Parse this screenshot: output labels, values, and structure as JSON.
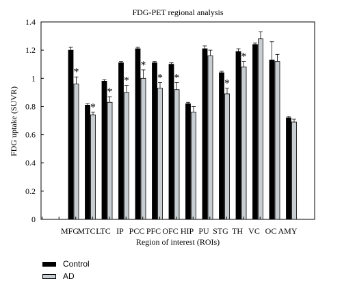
{
  "chart_data": {
    "type": "bar",
    "title": "FDG-PET regional analysis",
    "xlabel": "Region of interest (ROIs)",
    "ylabel": "FDG uptake (SUVR)",
    "ylim": [
      0,
      1.4
    ],
    "yticks": [
      "0",
      "0.2",
      "0.4",
      "0.6",
      "0.8",
      "1",
      "1.2",
      "1.4"
    ],
    "categories": [
      "MFG",
      "MTC",
      "LTC",
      "IP",
      "PCC",
      "PFC",
      "OFC",
      "HIP",
      "PU",
      "STG",
      "TH",
      "VC",
      "OC",
      "AMY"
    ],
    "series": [
      {
        "name": "Control",
        "color": "#000000",
        "values": [
          1.2,
          0.81,
          0.98,
          1.11,
          1.21,
          1.11,
          1.1,
          0.82,
          1.21,
          1.04,
          1.19,
          1.24,
          1.13,
          0.72
        ],
        "errors": [
          0.02,
          0.01,
          0.01,
          0.01,
          0.01,
          0.01,
          0.01,
          0.01,
          0.02,
          0.01,
          0.02,
          0.01,
          0.13,
          0.01
        ]
      },
      {
        "name": "AD",
        "color": "#c7cdd0",
        "values": [
          0.96,
          0.74,
          0.83,
          0.9,
          1.0,
          0.93,
          0.92,
          0.76,
          1.16,
          0.89,
          1.08,
          1.28,
          1.12,
          0.69
        ],
        "errors": [
          0.05,
          0.02,
          0.04,
          0.05,
          0.06,
          0.04,
          0.05,
          0.04,
          0.04,
          0.04,
          0.04,
          0.05,
          0.05,
          0.02
        ]
      }
    ],
    "significance_marker": "*",
    "significant": [
      true,
      true,
      true,
      true,
      true,
      true,
      true,
      false,
      false,
      true,
      true,
      false,
      false,
      false
    ],
    "legend_position": "bottom-left",
    "grid": false
  }
}
